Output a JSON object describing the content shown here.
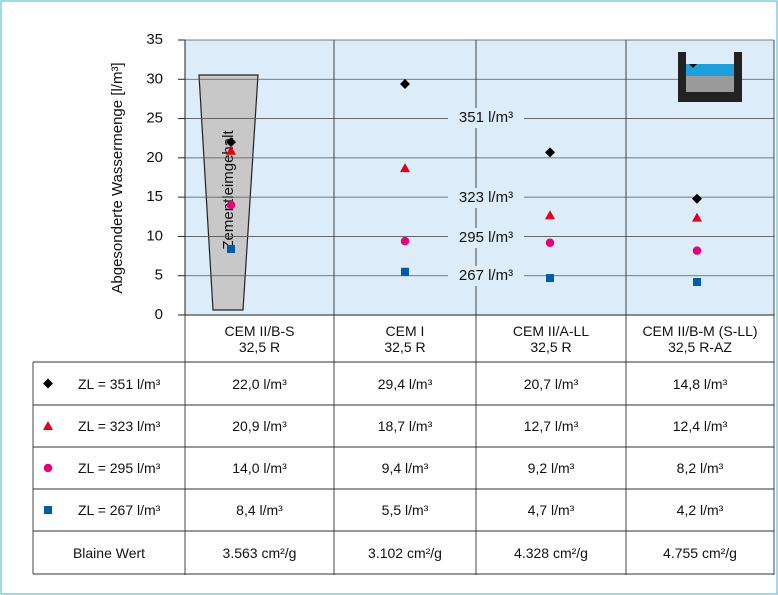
{
  "chart_data": {
    "type": "scatter",
    "ylabel": "Abgesonderte Wassermenge [l/m³]",
    "categories": [
      "CEM II/B-S\n32,5 R",
      "CEM I\n32,5 R",
      "CEM II/A-LL\n32,5 R",
      "CEM II/B-M (S-LL)\n32,5 R-AZ"
    ],
    "series": [
      {
        "name": "ZL = 351 l/m³",
        "color": "#000000",
        "marker": "diamond",
        "values": [
          22.0,
          29.4,
          20.7,
          14.8
        ],
        "value_labels": [
          "22,0 l/m³",
          "29,4 l/m³",
          "20,7 l/m³",
          "14,8 l/m³"
        ]
      },
      {
        "name": "ZL = 323 l/m³",
        "color": "#e2001a",
        "marker": "triangle",
        "values": [
          20.9,
          18.7,
          12.7,
          12.4
        ],
        "value_labels": [
          "20,9 l/m³",
          "18,7 l/m³",
          "12,7 l/m³",
          "12,4 l/m³"
        ]
      },
      {
        "name": "ZL = 295 l/m³",
        "color": "#e5007d",
        "marker": "circle",
        "values": [
          14.0,
          9.4,
          9.2,
          8.2
        ],
        "value_labels": [
          "14,0 l/m³",
          "9,4 l/m³",
          "9,2 l/m³",
          "8,2 l/m³"
        ]
      },
      {
        "name": "ZL = 267 l/m³",
        "color": "#005ca9",
        "marker": "square",
        "values": [
          8.4,
          5.5,
          4.7,
          4.2
        ],
        "value_labels": [
          "8,4 l/m³",
          "5,5 l/m³",
          "4,7 l/m³",
          "4,2 l/m³"
        ]
      }
    ],
    "blaine_label": "Blaine Wert",
    "blaine_values": [
      "3.563 cm²/g",
      "3.102 cm²/g",
      "4.328 cm²/g",
      "4.755 cm²/g"
    ],
    "annotations": [
      "351 l/m³",
      "323 l/m³",
      "295 l/m³",
      "267 l/m³"
    ],
    "trapezoid_label": "Zementleimgehalt",
    "ylim": [
      0,
      35
    ],
    "yticks": [
      0,
      5,
      10,
      15,
      20,
      25,
      30,
      35
    ],
    "grid": true,
    "background": "#dcecf8"
  }
}
